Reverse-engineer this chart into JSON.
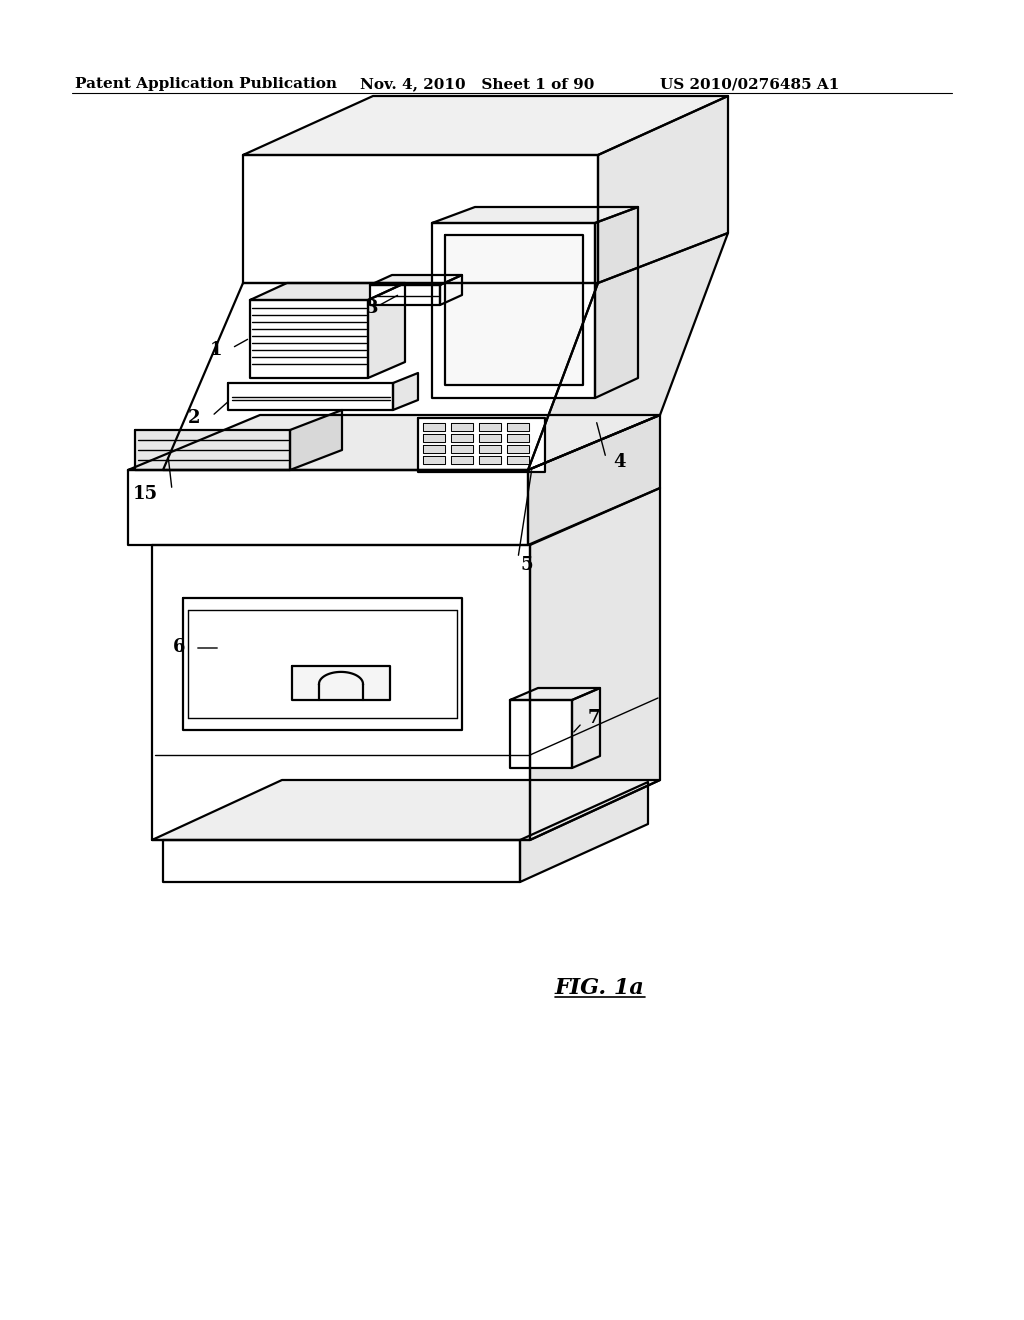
{
  "header_left": "Patent Application Publication",
  "header_center": "Nov. 4, 2010   Sheet 1 of 90",
  "header_right": "US 2010/0276485 A1",
  "figure_label": "FIG. 1a",
  "bg_color": "#ffffff",
  "line_color": "#000000",
  "header_fontsize": 11,
  "label_fontsize": 13,
  "fig_label_fontsize": 16,
  "lw_main": 1.6,
  "lw_thin": 1.0,
  "lw_header": 0.8
}
